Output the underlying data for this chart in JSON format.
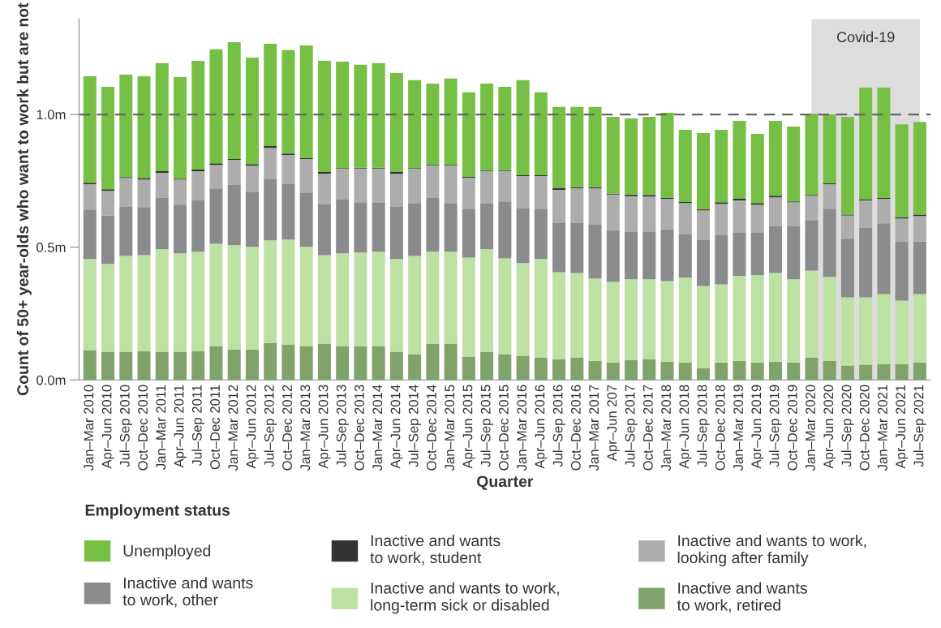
{
  "chart_data": {
    "type": "bar",
    "stacked": true,
    "xlabel": "Quarter",
    "ylabel": "Count of 50+ year-olds who want to work but are not",
    "legend_title": "Employment status",
    "categories": [
      "Jan–Mar 2010",
      "Apr–Jun 2010",
      "Jul–Sep 2010",
      "Oct–Dec 2010",
      "Jan–Mar 2011",
      "Apr–Jun 2011",
      "Jul–Sep 2011",
      "Oct–Dec 2011",
      "Jan–Mar 2012",
      "Apr–Jun 2012",
      "Jul–Sep 2012",
      "Oct–Dec 2012",
      "Jan–Mar 2013",
      "Apr–Jun 2013",
      "Jul–Sep 2013",
      "Oct–Dec 2013",
      "Jan–Mar 2014",
      "Apr–Jun 2014",
      "Jul–Sep 2014",
      "Oct–Dec 2014",
      "Jan–Mar 2015",
      "Apr–Jun 2015",
      "Jul–Sep 2015",
      "Oct–Dec 2015",
      "Jan–Mar 2016",
      "Apr–Jun 2016",
      "Jul–Sep 2016",
      "Oct–Dec 2016",
      "Jan–Mar 2017",
      "Apr–Jun 207",
      "Jul–Sep 2017",
      "Oct–Dec 2017",
      "Jan–Mar 2018",
      "Apr–Jun 2018",
      "Jul–Sep 2018",
      "Oct–Dec 2018",
      "Jan–Mar 2019",
      "Apr–Jun 2019",
      "Jul–Sep 2019",
      "Oct–Dec 2019",
      "Jan–Mar 2020",
      "Apr–Jun 2020",
      "Jul–Sep 2020",
      "Oct–Dec 2020",
      "Jan–Mar 2021",
      "Apr–Jun 2021",
      "Jul–Sep 2021"
    ],
    "series": [
      {
        "name": "Inactive and wants\nto work, retired",
        "color": "#7fa36a",
        "values": [
          0.112,
          0.106,
          0.106,
          0.109,
          0.106,
          0.106,
          0.109,
          0.128,
          0.115,
          0.115,
          0.14,
          0.134,
          0.128,
          0.137,
          0.128,
          0.128,
          0.128,
          0.106,
          0.097,
          0.137,
          0.137,
          0.088,
          0.106,
          0.097,
          0.091,
          0.085,
          0.079,
          0.085,
          0.072,
          0.066,
          0.076,
          0.079,
          0.069,
          0.066,
          0.045,
          0.066,
          0.072,
          0.066,
          0.069,
          0.066,
          0.085,
          0.072,
          0.054,
          0.057,
          0.06,
          0.06,
          0.066
        ]
      },
      {
        "name": "Inactive and wants to work,\nlong-term sick or disabled",
        "color": "#bde0a3",
        "values": [
          0.343,
          0.331,
          0.361,
          0.361,
          0.386,
          0.371,
          0.374,
          0.385,
          0.392,
          0.386,
          0.386,
          0.395,
          0.373,
          0.333,
          0.349,
          0.352,
          0.355,
          0.349,
          0.37,
          0.346,
          0.346,
          0.373,
          0.386,
          0.361,
          0.349,
          0.37,
          0.327,
          0.318,
          0.31,
          0.303,
          0.303,
          0.3,
          0.303,
          0.319,
          0.309,
          0.294,
          0.319,
          0.328,
          0.334,
          0.313,
          0.327,
          0.316,
          0.257,
          0.254,
          0.263,
          0.239,
          0.257
        ]
      },
      {
        "name": "Inactive and wants\nto work, other",
        "color": "#8a8b8c",
        "values": [
          0.187,
          0.183,
          0.187,
          0.181,
          0.193,
          0.183,
          0.193,
          0.208,
          0.227,
          0.208,
          0.232,
          0.208,
          0.205,
          0.193,
          0.202,
          0.189,
          0.186,
          0.199,
          0.199,
          0.205,
          0.183,
          0.184,
          0.174,
          0.214,
          0.208,
          0.19,
          0.187,
          0.19,
          0.205,
          0.196,
          0.18,
          0.18,
          0.196,
          0.165,
          0.175,
          0.187,
          0.165,
          0.162,
          0.175,
          0.199,
          0.19,
          0.257,
          0.221,
          0.263,
          0.267,
          0.223,
          0.199
        ]
      },
      {
        "name": "Inactive and wants to work,\nlooking after family",
        "color": "#adadad",
        "values": [
          0.095,
          0.092,
          0.107,
          0.104,
          0.095,
          0.095,
          0.11,
          0.089,
          0.095,
          0.098,
          0.116,
          0.11,
          0.126,
          0.114,
          0.116,
          0.127,
          0.127,
          0.122,
          0.129,
          0.12,
          0.142,
          0.117,
          0.121,
          0.115,
          0.12,
          0.123,
          0.123,
          0.129,
          0.135,
          0.133,
          0.133,
          0.132,
          0.114,
          0.116,
          0.11,
          0.116,
          0.12,
          0.104,
          0.11,
          0.091,
          0.092,
          0.092,
          0.088,
          0.102,
          0.092,
          0.086,
          0.095
        ]
      },
      {
        "name": "Inactive and wants\nto work, student",
        "color": "#333333",
        "values": [
          0.006,
          0.006,
          0.003,
          0.005,
          0.006,
          0.003,
          0.006,
          0.006,
          0.003,
          0.006,
          0.007,
          0.006,
          0.003,
          0.006,
          0.003,
          0.003,
          0.003,
          0.007,
          0.003,
          0.003,
          0.003,
          0.003,
          0.003,
          0.003,
          0.003,
          0.003,
          0.006,
          0.004,
          0.004,
          0.003,
          0.006,
          0.006,
          0.003,
          0.004,
          0.004,
          0.006,
          0.006,
          0.006,
          0.006,
          0.003,
          0.003,
          0.003,
          0.003,
          0.003,
          0.003,
          0.004,
          0.006
        ]
      },
      {
        "name": "Unemployed",
        "color": "#74bf44",
        "values": [
          0.401,
          0.386,
          0.386,
          0.384,
          0.407,
          0.383,
          0.41,
          0.429,
          0.44,
          0.401,
          0.385,
          0.389,
          0.425,
          0.419,
          0.401,
          0.388,
          0.394,
          0.373,
          0.331,
          0.305,
          0.324,
          0.318,
          0.326,
          0.314,
          0.358,
          0.312,
          0.306,
          0.302,
          0.302,
          0.29,
          0.287,
          0.294,
          0.321,
          0.272,
          0.287,
          0.273,
          0.294,
          0.261,
          0.282,
          0.282,
          0.306,
          0.26,
          0.368,
          0.422,
          0.416,
          0.351,
          0.349
        ]
      }
    ],
    "ylim": [
      0,
      1.36
    ],
    "yticks": [
      {
        "value": 0,
        "label": "0.0m"
      },
      {
        "value": 0.5,
        "label": "0.5m"
      },
      {
        "value": 1.0,
        "label": "1.0m"
      }
    ],
    "ref_lines": [
      {
        "axis": "y",
        "value": 1.0,
        "color": "#666666",
        "line_style": "dashed"
      }
    ],
    "bands": [
      {
        "axis": "x",
        "from": "Jan–Mar 2020",
        "to": "Jul–Sep 2021",
        "label": "Covid-19",
        "color": "#dddddd"
      }
    ],
    "grid": false,
    "legend": "bottom"
  }
}
